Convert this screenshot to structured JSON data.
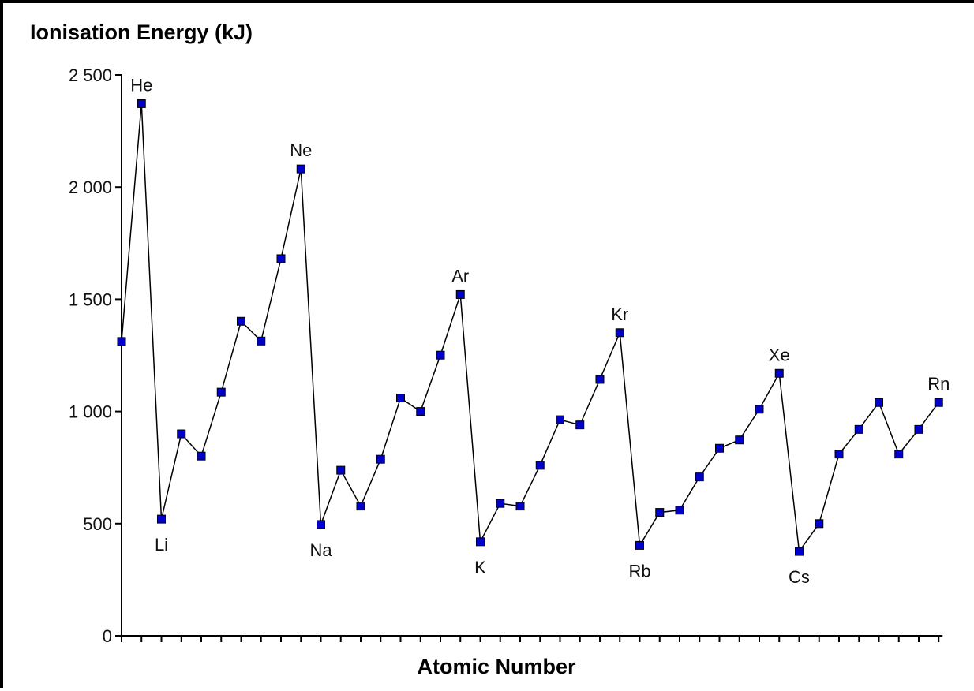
{
  "chart_data": {
    "type": "line",
    "title": "Ionisation Energy (kJ)",
    "xlabel": "Atomic Number",
    "ylabel": "Ionisation Energy (kJ)",
    "ylim": [
      0,
      2500
    ],
    "yticks": [
      0,
      500,
      1000,
      1500,
      2000,
      2500
    ],
    "ytick_labels": [
      "0",
      "500",
      "1 000",
      "1 500",
      "2 000",
      "2 500"
    ],
    "x": [
      1,
      2,
      3,
      4,
      5,
      6,
      7,
      8,
      9,
      10,
      11,
      12,
      13,
      14,
      15,
      16,
      17,
      18,
      19,
      20,
      21,
      22,
      23,
      24,
      25,
      26,
      27,
      28,
      29,
      30,
      31,
      32,
      33,
      34,
      35,
      36,
      37,
      38,
      39,
      40,
      41,
      42
    ],
    "values": [
      1312,
      2372,
      520,
      900,
      801,
      1086,
      1402,
      1314,
      1681,
      2081,
      496,
      738,
      578,
      787,
      1060,
      1000,
      1251,
      1521,
      419,
      590,
      578,
      760,
      963,
      940,
      1143,
      1351,
      403,
      550,
      560,
      708,
      836,
      873,
      1010,
      1170,
      376,
      500,
      810,
      920,
      1040,
      810,
      920,
      1040
    ],
    "point_labels": [
      {
        "x": 2,
        "text": "He",
        "pos": "above"
      },
      {
        "x": 3,
        "text": "Li",
        "pos": "below"
      },
      {
        "x": 10,
        "text": "Ne",
        "pos": "above"
      },
      {
        "x": 11,
        "text": "Na",
        "pos": "below"
      },
      {
        "x": 18,
        "text": "Ar",
        "pos": "above"
      },
      {
        "x": 19,
        "text": "K",
        "pos": "below"
      },
      {
        "x": 26,
        "text": "Kr",
        "pos": "above"
      },
      {
        "x": 27,
        "text": "Rb",
        "pos": "below"
      },
      {
        "x": 34,
        "text": "Xe",
        "pos": "above"
      },
      {
        "x": 35,
        "text": "Cs",
        "pos": "below"
      },
      {
        "x": 42,
        "text": "Rn",
        "pos": "above"
      }
    ],
    "marker_color": "#0000cc",
    "marker_edge": "#000000",
    "line_color": "#000000",
    "grid": false
  }
}
